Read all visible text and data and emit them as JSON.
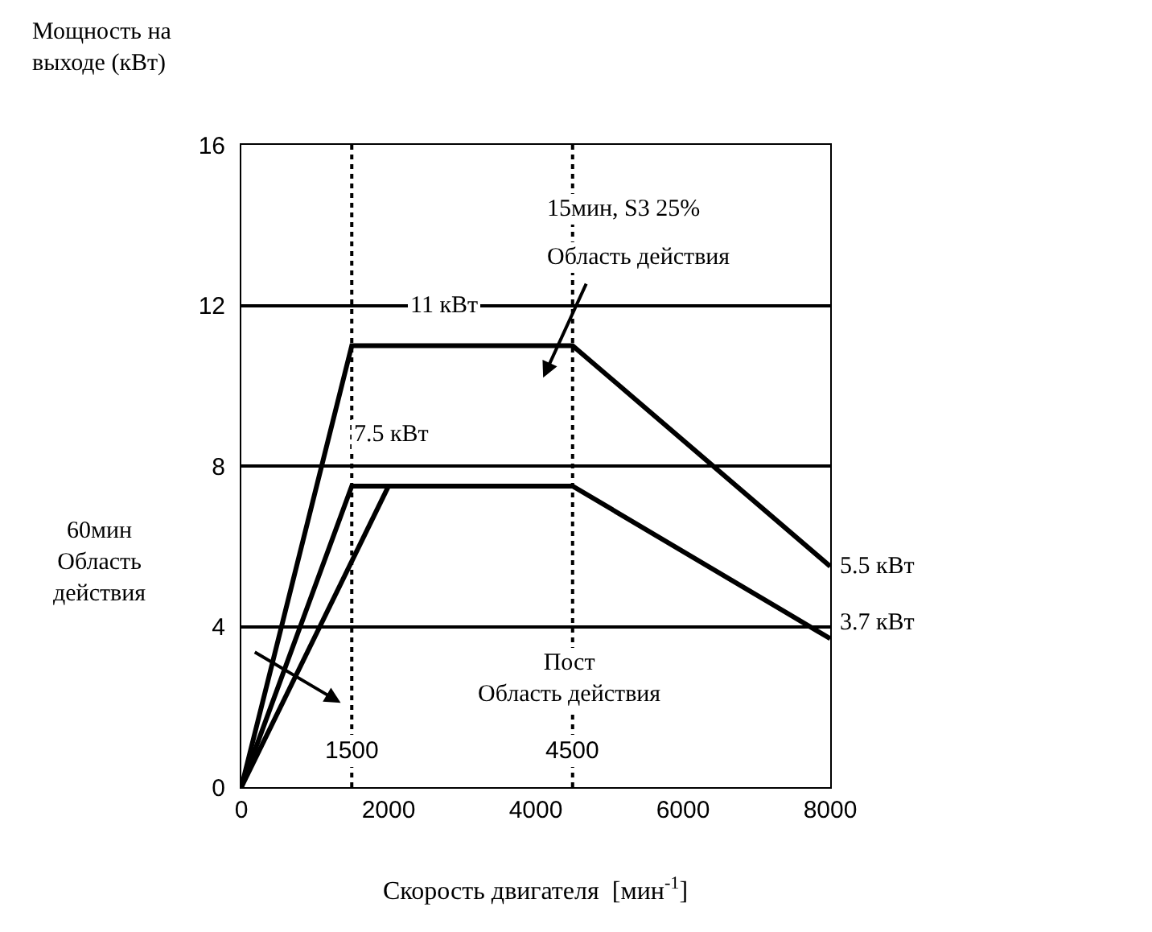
{
  "chart_data": {
    "type": "line",
    "xlabel": "Скорость двигателя  [мин$^{-1}$]",
    "ylabel": "Мощность на\nвыходе (кВт)",
    "series": [
      {
        "color": "#000000",
        "x": [
          0,
          1500,
          4500,
          8000
        ],
        "values": [
          0,
          11,
          11,
          5.5
        ]
      },
      {
        "color": "#000000",
        "x": [
          0,
          1500,
          4500,
          8000
        ],
        "values": [
          0,
          7.5,
          7.5,
          3.7
        ]
      },
      {
        "color": "#000000",
        "x": [
          0,
          2000
        ],
        "values": [
          0,
          7.5
        ]
      }
    ],
    "xlim": [
      0,
      8000
    ],
    "ylim": [
      0,
      16
    ],
    "xticks": [
      0,
      2000,
      4000,
      6000,
      8000
    ],
    "yticks": [
      0,
      4,
      8,
      12,
      16
    ],
    "grid": "y",
    "marker": "none",
    "line_style": "solid",
    "ref_lines": [
      {
        "axis": "x",
        "value": 1500,
        "label": "1500",
        "line_style": "dotted",
        "color": "#000000"
      },
      {
        "axis": "x",
        "value": 4500,
        "label": "4500",
        "line_style": "dotted",
        "color": "#000000"
      }
    ],
    "annotations": [
      "15мин, S3 25%",
      "Область действия",
      "11 кВт",
      "7.5 кВт",
      "5.5 кВт",
      "3.7 кВт",
      "60мин\nОбласть\nдействия",
      "Пост\nОбласть действия"
    ]
  }
}
